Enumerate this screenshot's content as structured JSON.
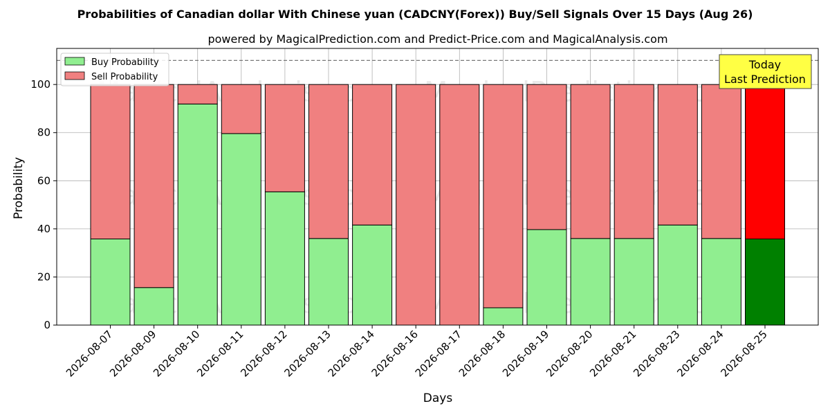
{
  "chart_data": {
    "type": "bar",
    "stacked": true,
    "title": "Probabilities of Canadian dollar With Chinese yuan (CADCNY(Forex)) Buy/Sell Signals Over 15 Days (Aug 26)",
    "subtitle": "powered by MagicalPrediction.com and Predict-Price.com and MagicalAnalysis.com",
    "xlabel": "Days",
    "ylabel": "Probability",
    "ylim": [
      0,
      115
    ],
    "yticks": [
      0,
      20,
      40,
      60,
      80,
      100
    ],
    "reference_line": 110,
    "grid": true,
    "legend_position": "top-left",
    "categories": [
      "2026-08-07",
      "2026-08-09",
      "2026-08-10",
      "2026-08-11",
      "2026-08-12",
      "2026-08-13",
      "2026-08-14",
      "2026-08-16",
      "2026-08-17",
      "2026-08-18",
      "2026-08-19",
      "2026-08-20",
      "2026-08-21",
      "2026-08-23",
      "2026-08-24",
      "2026-08-25"
    ],
    "series": [
      {
        "name": "Buy Probability",
        "color": "#90ee90",
        "highlight_color": "#008000",
        "values": [
          35.8,
          15.6,
          91.9,
          79.6,
          55.4,
          36.0,
          41.6,
          0,
          0,
          7.2,
          39.7,
          36.0,
          36.0,
          41.6,
          36.0,
          35.8
        ]
      },
      {
        "name": "Sell Probability",
        "color": "#f08080",
        "highlight_color": "#ff0000",
        "values": [
          64.2,
          84.4,
          8.1,
          20.4,
          44.6,
          64.0,
          58.4,
          100,
          100,
          92.8,
          60.3,
          64.0,
          64.0,
          58.4,
          64.0,
          64.2
        ]
      }
    ],
    "annotation": {
      "line1": "Today",
      "line2": "Last Prediction"
    },
    "watermarks": [
      "MagicalAnalysis.com",
      "MagicalPrediction.com"
    ]
  }
}
